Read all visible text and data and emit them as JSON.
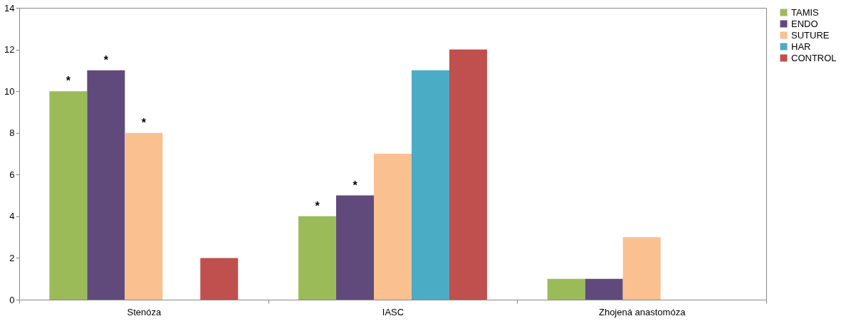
{
  "chart_data": {
    "type": "bar",
    "categories": [
      "Stenóza",
      "IASC",
      "Zhojená anastomóza"
    ],
    "series": [
      {
        "name": "TAMIS",
        "color": "#9bbb59",
        "values": [
          10,
          4,
          1
        ],
        "value_labels": [
          "*",
          "*",
          null
        ]
      },
      {
        "name": "ENDO",
        "color": "#604a7b",
        "values": [
          11,
          5,
          1
        ],
        "value_labels": [
          "*",
          "*",
          null
        ]
      },
      {
        "name": "SUTURE",
        "color": "#fac090",
        "values": [
          8,
          7,
          3
        ],
        "value_labels": [
          "*",
          null,
          null
        ]
      },
      {
        "name": "HAR",
        "color": "#4bacc6",
        "values": [
          0,
          11,
          0
        ]
      },
      {
        "name": "CONTROL",
        "color": "#c0504d",
        "values": [
          2,
          12,
          0
        ]
      }
    ],
    "ylim": [
      0,
      14
    ],
    "yticks": [
      0,
      2,
      4,
      6,
      8,
      10,
      12,
      14
    ],
    "grid": false,
    "legend": "right"
  }
}
